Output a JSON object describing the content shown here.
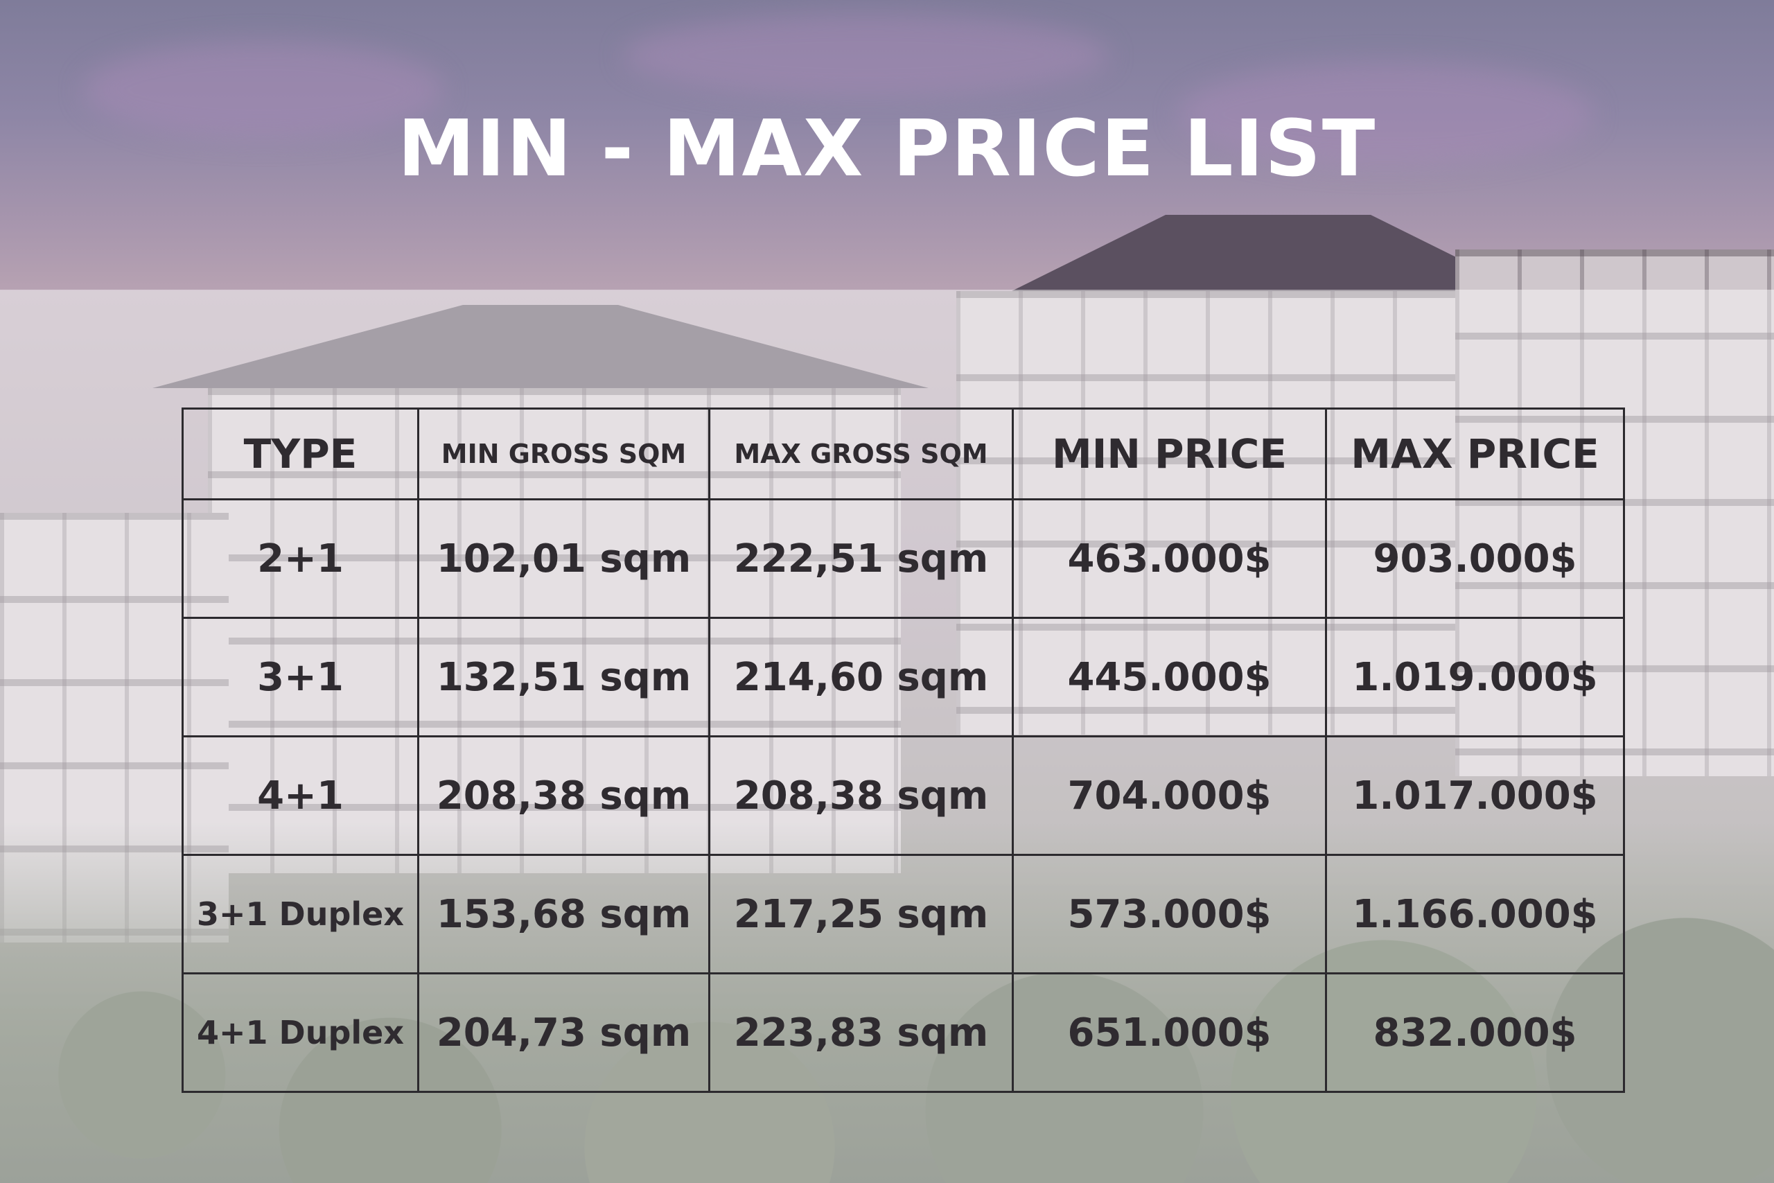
{
  "title": "MIN - MAX PRICE LIST",
  "table": {
    "headers": {
      "type": "TYPE",
      "min_gross": "MIN GROSS SQM",
      "max_gross": "MAX GROSS SQM",
      "min_price": "MIN PRICE",
      "max_price": "MAX PRICE"
    },
    "rows": [
      {
        "type": "2+1",
        "min_gross": "102,01 sqm",
        "max_gross": "222,51 sqm",
        "min_price": "463.000$",
        "max_price": "903.000$"
      },
      {
        "type": "3+1",
        "min_gross": "132,51 sqm",
        "max_gross": "214,60 sqm",
        "min_price": "445.000$",
        "max_price": "1.019.000$"
      },
      {
        "type": "4+1",
        "min_gross": "208,38 sqm",
        "max_gross": "208,38 sqm",
        "min_price": "704.000$",
        "max_price": "1.017.000$"
      },
      {
        "type": "3+1 Duplex",
        "min_gross": "153,68 sqm",
        "max_gross": "217,25 sqm",
        "min_price": "573.000$",
        "max_price": "1.166.000$"
      },
      {
        "type": "4+1 Duplex",
        "min_gross": "204,73 sqm",
        "max_gross": "223,83 sqm",
        "min_price": "651.000$",
        "max_price": "832.000$"
      }
    ]
  },
  "colors": {
    "title": "#ffffff",
    "table_text": "#2f2b30",
    "border": "#2c2a2e"
  }
}
